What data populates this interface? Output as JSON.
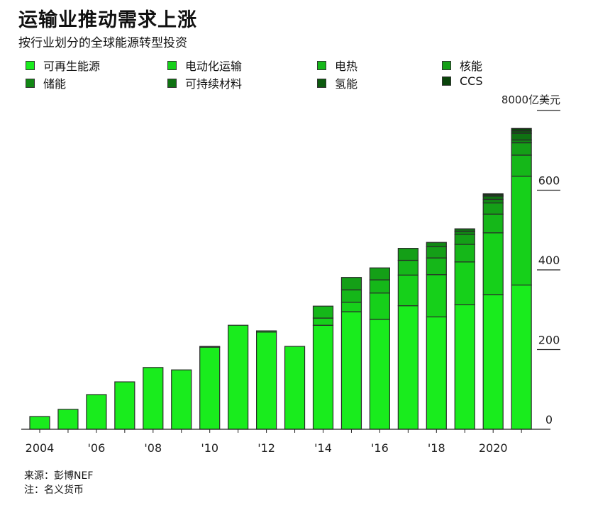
{
  "chart_data": {
    "type": "bar",
    "stacked": true,
    "title": "运输业推动需求上涨",
    "subtitle": "按行业划分的全球能源转型投资",
    "unit_label": "8000亿美元",
    "ylim": [
      0,
      800
    ],
    "yticks": [
      "0",
      "200",
      "400",
      "600"
    ],
    "categories": [
      "2004",
      "2005",
      "2006",
      "2007",
      "2008",
      "2009",
      "2010",
      "2011",
      "2012",
      "2013",
      "2014",
      "2015",
      "2016",
      "2017",
      "2018",
      "2019",
      "2020",
      "2021"
    ],
    "xtick_labels": [
      {
        "year": "2004",
        "label": "2004"
      },
      {
        "year": "2006",
        "label": "'06"
      },
      {
        "year": "2008",
        "label": "'08"
      },
      {
        "year": "2010",
        "label": "'10"
      },
      {
        "year": "2012",
        "label": "'12"
      },
      {
        "year": "2014",
        "label": "'14"
      },
      {
        "year": "2016",
        "label": "'16"
      },
      {
        "year": "2018",
        "label": "'18"
      },
      {
        "year": "2020",
        "label": "2020"
      }
    ],
    "series": [
      {
        "name": "可再生能源",
        "color": "#19ec1d",
        "values": [
          32,
          50,
          87,
          119,
          155,
          149,
          206,
          261,
          244,
          208,
          261,
          295,
          276,
          310,
          282,
          313,
          338,
          362
        ]
      },
      {
        "name": "电动化运输",
        "color": "#16d01a",
        "values": [
          0,
          0,
          0,
          0,
          0,
          0,
          2,
          0,
          3,
          0,
          18,
          24,
          66,
          77,
          106,
          107,
          155,
          273
        ]
      },
      {
        "name": "电热",
        "color": "#15b719",
        "values": [
          0,
          0,
          0,
          0,
          0,
          0,
          0,
          0,
          0,
          0,
          30,
          31,
          33,
          37,
          42,
          44,
          47,
          53
        ]
      },
      {
        "name": "核能",
        "color": "#149f17",
        "values": [
          0,
          0,
          0,
          0,
          0,
          0,
          0,
          0,
          0,
          0,
          0,
          31,
          30,
          30,
          28,
          25,
          28,
          31
        ]
      },
      {
        "name": "储能",
        "color": "#118714",
        "values": [
          0,
          0,
          0,
          0,
          0,
          0,
          0,
          0,
          0,
          0,
          0,
          0,
          0,
          0,
          11,
          8,
          9,
          7
        ]
      },
      {
        "name": "可持续材料",
        "color": "#0f7212",
        "values": [
          0,
          0,
          0,
          0,
          0,
          0,
          0,
          0,
          0,
          0,
          0,
          0,
          0,
          0,
          0,
          6,
          8,
          17
        ]
      },
      {
        "name": "氢能",
        "color": "#0c5a0e",
        "values": [
          0,
          0,
          0,
          0,
          0,
          0,
          0,
          0,
          0,
          0,
          0,
          0,
          0,
          0,
          0,
          0,
          3,
          6
        ]
      },
      {
        "name": "CCS",
        "color": "#0a440b",
        "values": [
          0,
          0,
          0,
          0,
          0,
          0,
          0,
          0,
          0,
          0,
          0,
          0,
          0,
          0,
          0,
          0,
          3,
          6
        ]
      }
    ],
    "grid": false,
    "legend_position": "top"
  },
  "footer": {
    "source": "来源：彭博NEF",
    "note": "注：名义货币"
  }
}
